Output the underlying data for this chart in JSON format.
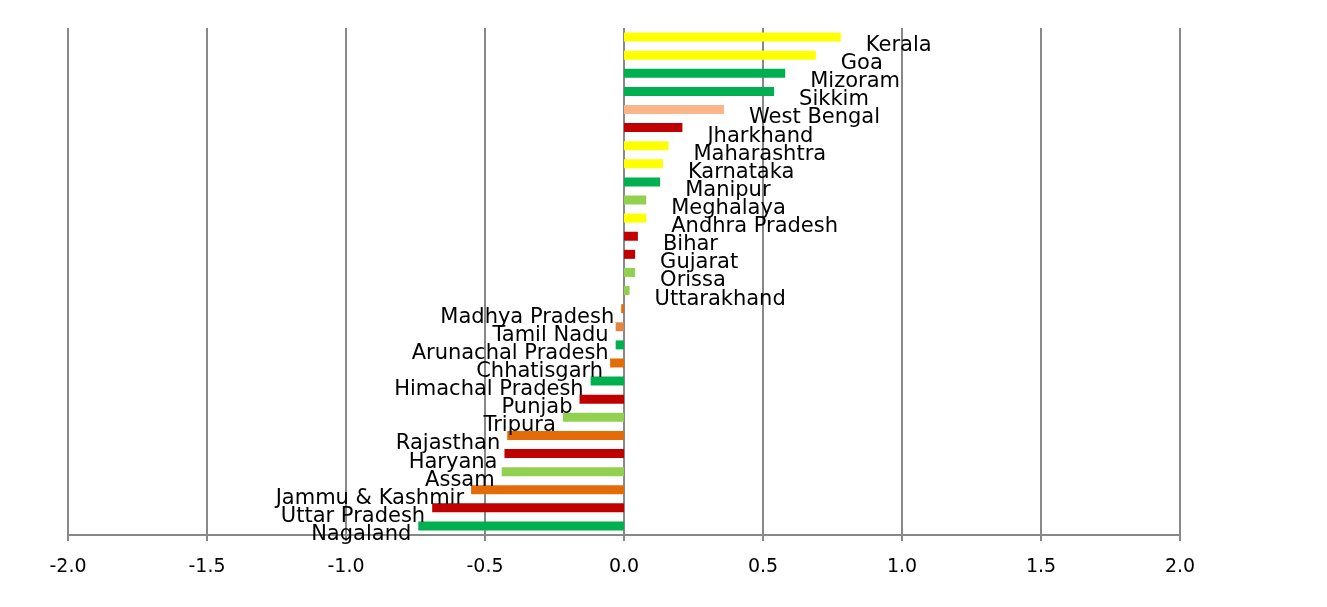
{
  "chart_data": {
    "type": "bar",
    "orientation": "horizontal",
    "categories": [
      "Kerala",
      "Goa",
      "Mizoram",
      "Sikkim",
      "West Bengal",
      "Jharkhand",
      "Maharashtra",
      "Karnataka",
      "Manipur",
      "Meghalaya",
      "Andhra Pradesh",
      "Bihar",
      "Gujarat",
      "Orissa",
      "Uttarakhand",
      "Madhya Pradesh",
      "Tamil Nadu",
      "Arunachal Pradesh",
      "Chhatisgarh",
      "Himachal Pradesh",
      "Punjab",
      "Tripura",
      "Rajasthan",
      "Haryana",
      "Assam",
      "Jammu & Kashmir",
      "Uttar Pradesh",
      "Nagaland"
    ],
    "values": [
      0.78,
      0.69,
      0.58,
      0.54,
      0.36,
      0.21,
      0.16,
      0.14,
      0.13,
      0.08,
      0.08,
      0.05,
      0.04,
      0.04,
      0.02,
      -0.01,
      -0.03,
      -0.03,
      -0.05,
      -0.12,
      -0.16,
      -0.22,
      -0.42,
      -0.43,
      -0.44,
      -0.55,
      -0.69,
      -0.74
    ],
    "colors": [
      "#ffff00",
      "#ffff00",
      "#00b050",
      "#00b050",
      "#fbb58b",
      "#c00000",
      "#ffff00",
      "#ffff00",
      "#00b050",
      "#92d050",
      "#ffff00",
      "#c00000",
      "#c00000",
      "#92d050",
      "#92d050",
      "#e36c09",
      "#dd8844",
      "#00b050",
      "#e36c09",
      "#00b050",
      "#c00000",
      "#92d050",
      "#e36c09",
      "#c00000",
      "#92d050",
      "#e36c09",
      "#c00000",
      "#00b050"
    ],
    "xlim": [
      -2.0,
      2.0
    ],
    "xticks": [
      {
        "value": -2,
        "label": "-2.0"
      },
      {
        "value": -1.5,
        "label": "-1.5"
      },
      {
        "value": -1,
        "label": "-1.0"
      },
      {
        "value": -0.5,
        "label": "-0.5"
      },
      {
        "value": 0,
        "label": "0.0"
      },
      {
        "value": 0.5,
        "label": "0.5"
      },
      {
        "value": 1,
        "label": "1.0"
      },
      {
        "value": 1.5,
        "label": "1.5"
      },
      {
        "value": 2,
        "label": "2.0"
      }
    ],
    "grid": "x"
  }
}
